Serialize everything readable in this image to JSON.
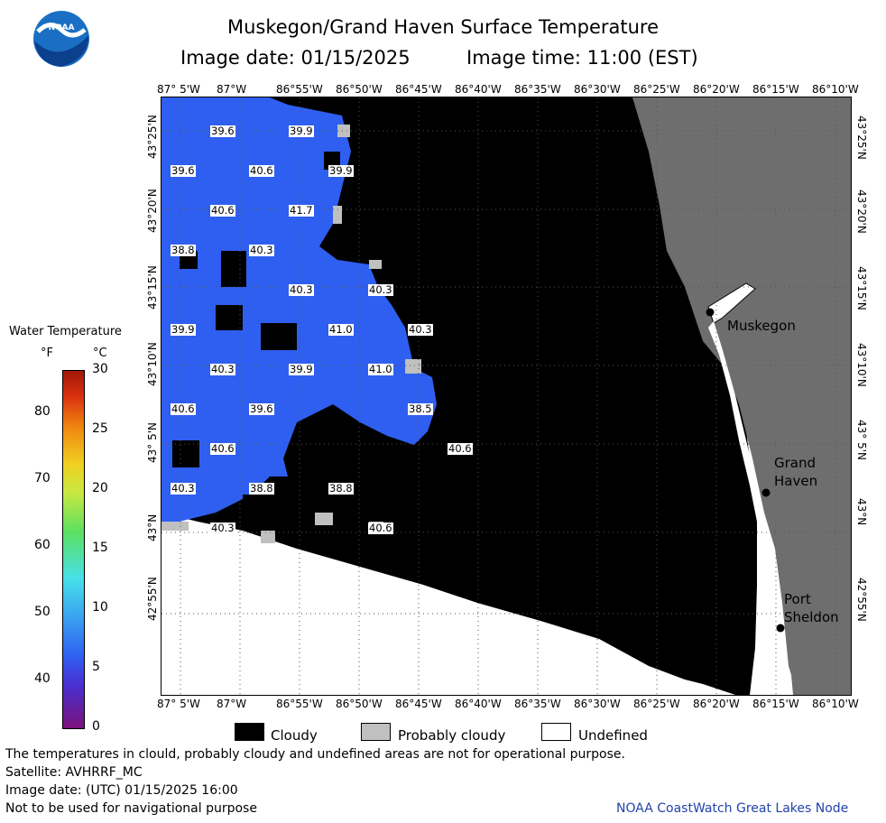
{
  "header": {
    "title": "Muskegon/Grand Haven Surface Temperature",
    "image_date": "Image date: 01/15/2025",
    "image_time": "Image time: 11:00 (EST)"
  },
  "logo": {
    "text": "NOAA"
  },
  "longitude_ticks": [
    "87° 5'W",
    "87°W",
    "86°55'W",
    "86°50'W",
    "86°45'W",
    "86°40'W",
    "86°35'W",
    "86°30'W",
    "86°25'W",
    "86°20'W",
    "86°15'W",
    "86°10'W"
  ],
  "latitude_ticks": [
    "43°25'N",
    "43°20'N",
    "43°15'N",
    "43°10'N",
    "43° 5'N",
    "43°N",
    "42°55'N"
  ],
  "colorbar": {
    "title": "Water Temperature",
    "unit_f": "°F",
    "unit_c": "°C",
    "fahrenheit_ticks": [
      "80",
      "70",
      "60",
      "50",
      "40"
    ],
    "celsius_ticks": [
      "30",
      "25",
      "20",
      "15",
      "10",
      "5",
      "0"
    ]
  },
  "temperature_labels": [
    "39.6",
    "39.9",
    "39.6",
    "40.6",
    "39.9",
    "40.6",
    "41.7",
    "38.8",
    "40.3",
    "40.3",
    "40.3",
    "39.9",
    "41.0",
    "40.3",
    "40.3",
    "39.9",
    "41.0",
    "40.6",
    "39.6",
    "38.8",
    "40.6",
    "40.6",
    "40.3",
    "38.8",
    "38.5",
    "40.3",
    "40.6"
  ],
  "cities": {
    "muskegon": "Muskegon",
    "grand_haven": "Grand\nHaven",
    "port_sheldon": "Port\nSheldon"
  },
  "legend": {
    "cloudy": "Cloudy",
    "probably_cloudy": "Probably cloudy",
    "undefined": "Undefined"
  },
  "footer": {
    "disclaimer": "The temperatures in clould, probably cloudy and undefined areas are not for operational purpose.",
    "satellite": "Satellite: AVHRRF_MC",
    "utc_date": "Image date: (UTC) 01/15/2025  16:00",
    "navigation": "Not to be used for navigational purpose",
    "credit": "NOAA CoastWatch Great Lakes Node"
  },
  "colors": {
    "water_blue": "#2f5ff0",
    "cloud_black": "#000000",
    "prob_cloud_gray": "#c0c0c0",
    "land_gray": "#6e6e6e",
    "undefined_white": "#ffffff"
  }
}
